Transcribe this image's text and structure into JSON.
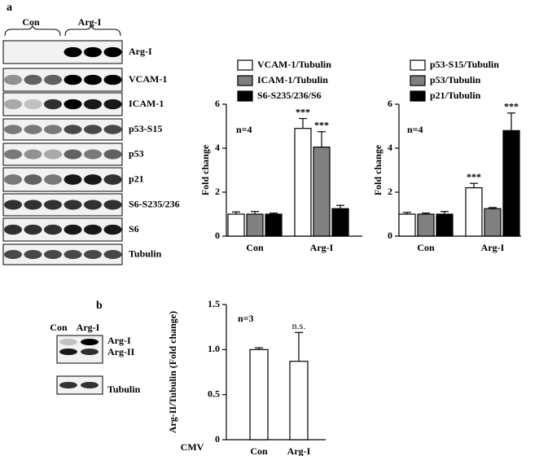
{
  "panel_labels": [
    "a",
    "b"
  ],
  "blots": {
    "a": {
      "groups": [
        "Con",
        "Arg-I"
      ],
      "rows": [
        "Arg-I",
        "VCAM-1",
        "ICAM-1",
        "p53-S15",
        "p53",
        "p21",
        "S6-S235/236",
        "S6",
        "Tubulin"
      ]
    },
    "b": {
      "lanes": [
        "Con",
        "Arg-I"
      ],
      "rows": [
        "Arg-I",
        "Arg-II",
        "Tubulin"
      ]
    }
  },
  "chart_data": [
    {
      "type": "bar",
      "y_label": "Fold change",
      "annotation": "n=4",
      "categories": [
        "Con",
        "Arg-I"
      ],
      "ylim": [
        0,
        6
      ],
      "yticks": [
        0,
        2,
        4,
        6
      ],
      "series": [
        {
          "name": "VCAM-1/Tubulin",
          "color": "#ffffff",
          "values": [
            1.0,
            4.9
          ],
          "errors": [
            0.1,
            0.45
          ],
          "marks": [
            null,
            "***"
          ]
        },
        {
          "name": "ICAM-1/Tubulin",
          "color": "#808080",
          "values": [
            1.0,
            4.05
          ],
          "errors": [
            0.12,
            0.7
          ],
          "marks": [
            null,
            "***"
          ]
        },
        {
          "name": "S6-S235/236/S6",
          "color": "#000000",
          "values": [
            1.0,
            1.25
          ],
          "errors": [
            0.05,
            0.15
          ],
          "marks": [
            null,
            null
          ]
        }
      ]
    },
    {
      "type": "bar",
      "y_label": "Fold change",
      "annotation": "n=4",
      "categories": [
        "Con",
        "Arg-I"
      ],
      "ylim": [
        0,
        6
      ],
      "yticks": [
        0,
        2,
        4,
        6
      ],
      "series": [
        {
          "name": "p53-S15/Tubulin",
          "color": "#ffffff",
          "values": [
            1.0,
            2.2
          ],
          "errors": [
            0.08,
            0.2
          ],
          "marks": [
            null,
            "***"
          ]
        },
        {
          "name": "p53/Tubulin",
          "color": "#808080",
          "values": [
            1.0,
            1.25
          ],
          "errors": [
            0.05,
            0.05
          ],
          "marks": [
            null,
            null
          ]
        },
        {
          "name": "p21/Tubulin",
          "color": "#000000",
          "values": [
            1.0,
            4.8
          ],
          "errors": [
            0.12,
            0.8
          ],
          "marks": [
            null,
            "***"
          ]
        }
      ]
    },
    {
      "type": "bar",
      "y_label": "Arg-II/Tubulin (Fold change)",
      "annotation": "n=3",
      "x_title": "CMV",
      "categories": [
        "Con",
        "Arg-I"
      ],
      "ylim": [
        0,
        1.5
      ],
      "yticks": [
        0,
        0.5,
        {
          "value": 1,
          "label": "1.0"
        },
        1.5
      ],
      "color": "#ffffff",
      "values": [
        1.0,
        0.87
      ],
      "errors": [
        0.02,
        0.32
      ],
      "marks": [
        null,
        "n.s."
      ]
    }
  ]
}
